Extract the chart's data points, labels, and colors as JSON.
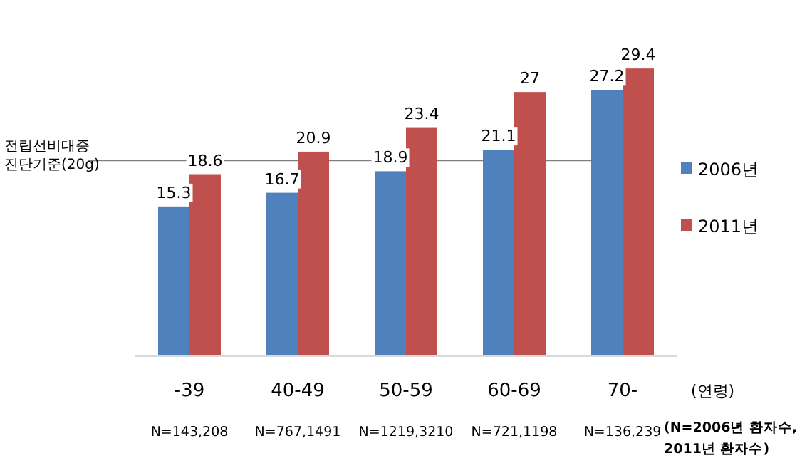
{
  "chart_data": {
    "type": "bar",
    "xlabel": "(연령)",
    "categories": [
      "-39",
      "40-49",
      "50-59",
      "60-69",
      "70-"
    ],
    "series": [
      {
        "name": "2006년",
        "color": "#4f81bd",
        "values": [
          15.3,
          16.7,
          18.9,
          21.1,
          27.2
        ]
      },
      {
        "name": "2011년",
        "color": "#c0504d",
        "values": [
          18.6,
          20.9,
          23.4,
          27,
          29.4
        ]
      }
    ],
    "data_labels": true,
    "legend": "right",
    "ref_lines": [
      {
        "axis": "y",
        "value": 20,
        "label": "전립선비대증 진단기준(20g)",
        "color": "#808080"
      }
    ],
    "annotations": [
      "N=143,208",
      "N=767,1491",
      "N=1219,3210",
      "N=721,1198",
      "N=136,239",
      "(N=2006년 환자수, 2011년 환자수)"
    ]
  }
}
